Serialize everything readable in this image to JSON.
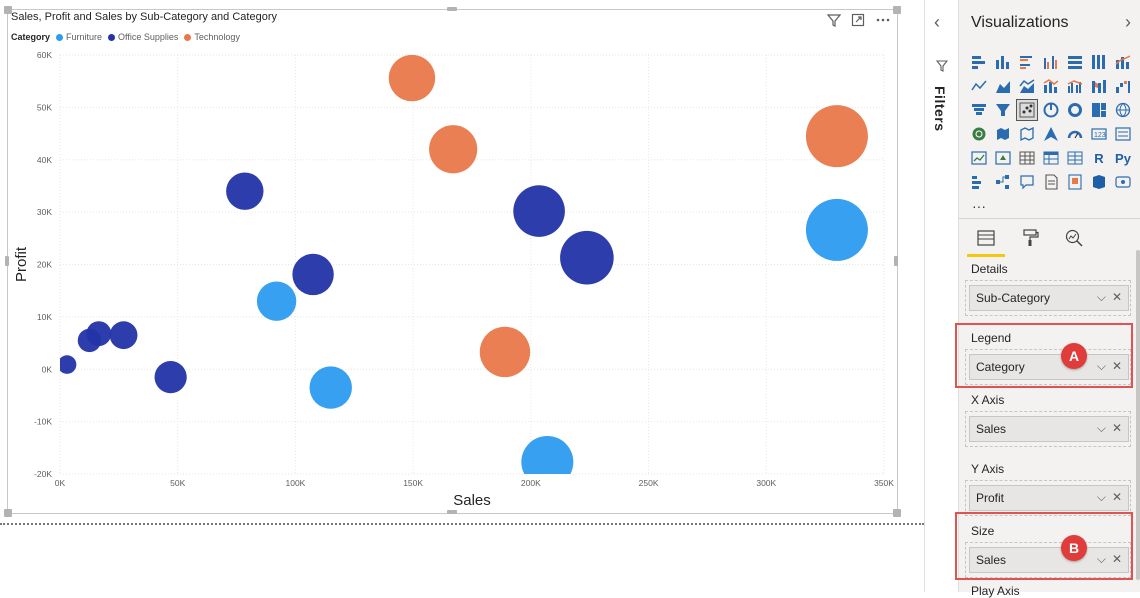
{
  "chart": {
    "title": "Sales, Profit and Sales by Sub-Category and Category",
    "legend_title": "Category",
    "legend": [
      {
        "name": "Furniture",
        "color": "#2d9bf0"
      },
      {
        "name": "Office Supplies",
        "color": "#2234a8"
      },
      {
        "name": "Technology",
        "color": "#e8784a"
      }
    ],
    "icons": [
      "filter-icon",
      "focus-mode-icon",
      "more-options-icon"
    ]
  },
  "chart_data": {
    "type": "scatter",
    "title": "Sales, Profit and Sales by Sub-Category and Category",
    "xlabel": "Sales",
    "ylabel": "Profit",
    "xlim": [
      0,
      350000
    ],
    "ylim": [
      -20000,
      60000
    ],
    "x_ticks": [
      "0K",
      "50K",
      "100K",
      "150K",
      "200K",
      "250K",
      "300K",
      "350K"
    ],
    "y_ticks": [
      "60K",
      "50K",
      "40K",
      "30K",
      "20K",
      "10K",
      "0K",
      "-10K",
      "-20K"
    ],
    "grid": true,
    "legend_position": "top-left",
    "series": [
      {
        "name": "Furniture",
        "color": "#2d9bf0",
        "points": [
          {
            "x": 92000,
            "y": 13000,
            "size": 92000
          },
          {
            "x": 115000,
            "y": -3500,
            "size": 115000
          },
          {
            "x": 207000,
            "y": -17700,
            "size": 207000
          },
          {
            "x": 330000,
            "y": 26600,
            "size": 330000
          }
        ]
      },
      {
        "name": "Office Supplies",
        "color": "#2234a8",
        "points": [
          {
            "x": 3000,
            "y": 900,
            "size": 3000
          },
          {
            "x": 12500,
            "y": 5500,
            "size": 12500
          },
          {
            "x": 16500,
            "y": 6800,
            "size": 16500
          },
          {
            "x": 27000,
            "y": 6500,
            "size": 27000
          },
          {
            "x": 47000,
            "y": -1500,
            "size": 47000
          },
          {
            "x": 78500,
            "y": 34000,
            "size": 78500
          },
          {
            "x": 107500,
            "y": 18100,
            "size": 107500
          },
          {
            "x": 203500,
            "y": 30200,
            "size": 203500
          },
          {
            "x": 223800,
            "y": 21300,
            "size": 223800
          }
        ]
      },
      {
        "name": "Technology",
        "color": "#e8784a",
        "points": [
          {
            "x": 149500,
            "y": 55600,
            "size": 149500
          },
          {
            "x": 167000,
            "y": 42000,
            "size": 167000
          },
          {
            "x": 189000,
            "y": 3300,
            "size": 189000
          },
          {
            "x": 330000,
            "y": 44500,
            "size": 330000
          }
        ]
      }
    ]
  },
  "filters_pane": {
    "label": "Filters"
  },
  "viz_pane": {
    "title": "Visualizations",
    "r_label": "R",
    "py_label": "Py",
    "more_label": "···",
    "wells": [
      {
        "label": "Details",
        "field": "Sub-Category"
      },
      {
        "label": "Legend",
        "field": "Category"
      },
      {
        "label": "X Axis",
        "field": "Sales"
      },
      {
        "label": "Y Axis",
        "field": "Profit"
      },
      {
        "label": "Size",
        "field": "Sales"
      }
    ],
    "partial_label": "Play Axis"
  },
  "annotations": {
    "a": "A",
    "b": "B",
    "color": "#e03c3c"
  }
}
